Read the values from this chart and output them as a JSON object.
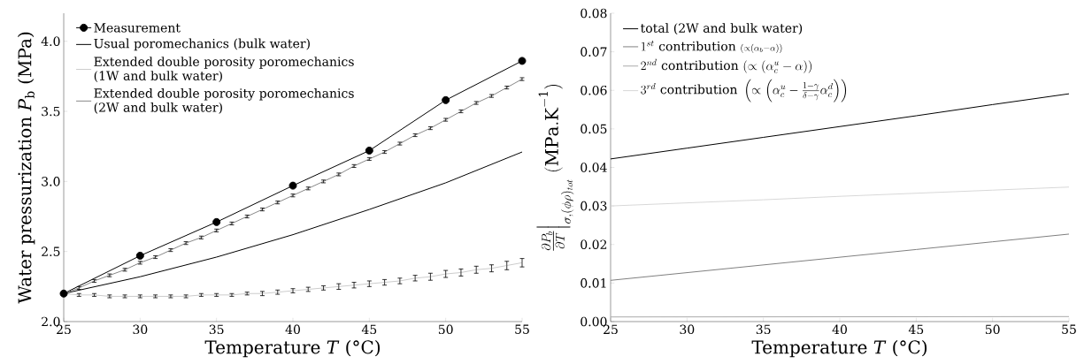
{
  "chart_data": [
    {
      "type": "line",
      "xlabel": "Temperature *T* (°C)",
      "ylabel": "Water pressurization *P*$_{b}$ (MPa)",
      "xlim": [
        25,
        55
      ],
      "xticks": [
        25,
        30,
        35,
        40,
        45,
        50,
        55
      ],
      "ylim": [
        2.0,
        4.2
      ],
      "yticks": [
        {
          "value": 2.0,
          "label": "2.0"
        },
        {
          "value": 2.5,
          "label": "2.5"
        },
        {
          "value": 3.0,
          "label": "3.0"
        },
        {
          "value": 3.5,
          "label": "3.5"
        },
        {
          "value": 4.0,
          "label": "4.0"
        }
      ],
      "legend": "top left",
      "series": [
        {
          "name": "Measurement",
          "color": "#000000",
          "marker": "circle",
          "x": [
            25,
            30,
            35,
            40,
            45,
            50,
            55
          ],
          "values": [
            2.2,
            2.47,
            2.71,
            2.97,
            3.22,
            3.58,
            3.86
          ]
        },
        {
          "name": "Usual poromechanics (bulk water)",
          "color": "#000000",
          "x": [
            25,
            30,
            35,
            40,
            45,
            50,
            55
          ],
          "values": [
            2.2,
            2.32,
            2.46,
            2.62,
            2.8,
            2.99,
            3.21
          ]
        },
        {
          "name": "Extended double porosity poromechanics (1W and bulk water)",
          "color": "#cccccc",
          "x": [
            25,
            26,
            27,
            28,
            29,
            30,
            31,
            32,
            33,
            34,
            35,
            36,
            37,
            38,
            39,
            40,
            41,
            42,
            43,
            44,
            45,
            46,
            47,
            48,
            49,
            50,
            51,
            52,
            53,
            54,
            55
          ],
          "values": [
            2.2,
            2.19,
            2.19,
            2.18,
            2.18,
            2.18,
            2.18,
            2.18,
            2.18,
            2.19,
            2.19,
            2.19,
            2.2,
            2.2,
            2.21,
            2.22,
            2.23,
            2.24,
            2.25,
            2.26,
            2.27,
            2.28,
            2.29,
            2.31,
            2.32,
            2.34,
            2.35,
            2.37,
            2.38,
            2.4,
            2.42
          ],
          "errors": [
            0.01,
            0.01,
            0.01,
            0.01,
            0.01,
            0.01,
            0.01,
            0.01,
            0.01,
            0.01,
            0.01,
            0.01,
            0.01,
            0.015,
            0.015,
            0.015,
            0.015,
            0.015,
            0.02,
            0.02,
            0.02,
            0.02,
            0.02,
            0.02,
            0.025,
            0.025,
            0.025,
            0.025,
            0.025,
            0.03,
            0.03
          ]
        },
        {
          "name": "Extended double porosity poromechanics (2W and bulk water)",
          "color": "#888888",
          "x": [
            25,
            26,
            27,
            28,
            29,
            30,
            31,
            32,
            33,
            34,
            35,
            36,
            37,
            38,
            39,
            40,
            41,
            42,
            43,
            44,
            45,
            46,
            47,
            48,
            49,
            50,
            51,
            52,
            53,
            54,
            55
          ],
          "values": [
            2.2,
            2.24,
            2.29,
            2.33,
            2.37,
            2.42,
            2.46,
            2.51,
            2.56,
            2.6,
            2.65,
            2.7,
            2.75,
            2.8,
            2.85,
            2.9,
            2.95,
            3.0,
            3.05,
            3.11,
            3.16,
            3.21,
            3.27,
            3.33,
            3.38,
            3.44,
            3.5,
            3.56,
            3.61,
            3.67,
            3.73
          ],
          "errors": [
            0.01,
            0.01,
            0.01,
            0.01,
            0.01,
            0.01,
            0.01,
            0.01,
            0.01,
            0.01,
            0.01,
            0.01,
            0.01,
            0.01,
            0.01,
            0.01,
            0.01,
            0.01,
            0.01,
            0.01,
            0.01,
            0.01,
            0.01,
            0.01,
            0.01,
            0.01,
            0.01,
            0.01,
            0.01,
            0.01,
            0.01
          ]
        }
      ]
    },
    {
      "type": "line",
      "xlabel": "Temperature *T* (°C)",
      "ylabel": "\\frac{\\partial P_b}{\\partial T}\\Big|_{\\sigma,(\\phi\\rho)_{tot}}\\ (\\mathrm{MPa.K^{-1}})",
      "xlim": [
        25,
        55
      ],
      "xticks": [
        25,
        30,
        35,
        40,
        45,
        50,
        55
      ],
      "ylim": [
        0,
        0.08
      ],
      "yticks": [
        {
          "value": 0,
          "label": "0.00"
        },
        {
          "value": 0.01,
          "label": "0.01"
        },
        {
          "value": 0.02,
          "label": "0.02"
        },
        {
          "value": 0.03,
          "label": "0.03"
        },
        {
          "value": 0.04,
          "label": "0.04"
        },
        {
          "value": 0.05,
          "label": "0.05"
        },
        {
          "value": 0.06,
          "label": "0.06"
        },
        {
          "value": 0.07,
          "label": "0.07"
        },
        {
          "value": 0.08,
          "label": "0.08"
        }
      ],
      "legend": "top left",
      "series": [
        {
          "name": "\\text{total (2W and bulk water)}",
          "color": "#000000",
          "x": [
            25,
            30,
            35,
            40,
            45,
            50,
            55
          ],
          "values": [
            0.0422,
            0.045,
            0.0478,
            0.0506,
            0.0534,
            0.0563,
            0.0591
          ]
        },
        {
          "name": "1^{st}\\ \\text{contribution}\\ {\\scriptstyle(\\propto(\\alpha_b-\\alpha))}",
          "color": "#808080",
          "x": [
            25,
            30,
            35,
            40,
            45,
            50,
            55
          ],
          "values": [
            0.0107,
            0.0127,
            0.0147,
            0.0167,
            0.0187,
            0.0207,
            0.0227
          ]
        },
        {
          "name": "2^{nd}\\ \\text{contribution}\\ (\\propto(\\alpha_c^u-\\alpha))",
          "color": "#aaaaaa",
          "x": [
            25,
            55
          ],
          "values": [
            0.0012,
            0.0013
          ]
        },
        {
          "name": "3^{rd}\\ \\text{contribution}\\ \\left(\\propto\\left(\\alpha_c^u-\\frac{1-\\gamma}{\\delta-\\gamma}\\alpha_c^d\\right)\\right)",
          "color": "#d8d8d8",
          "x": [
            25,
            30,
            35,
            40,
            45,
            50,
            55
          ],
          "values": [
            0.03,
            0.0308,
            0.0316,
            0.0325,
            0.0333,
            0.0341,
            0.0349
          ]
        }
      ]
    }
  ]
}
